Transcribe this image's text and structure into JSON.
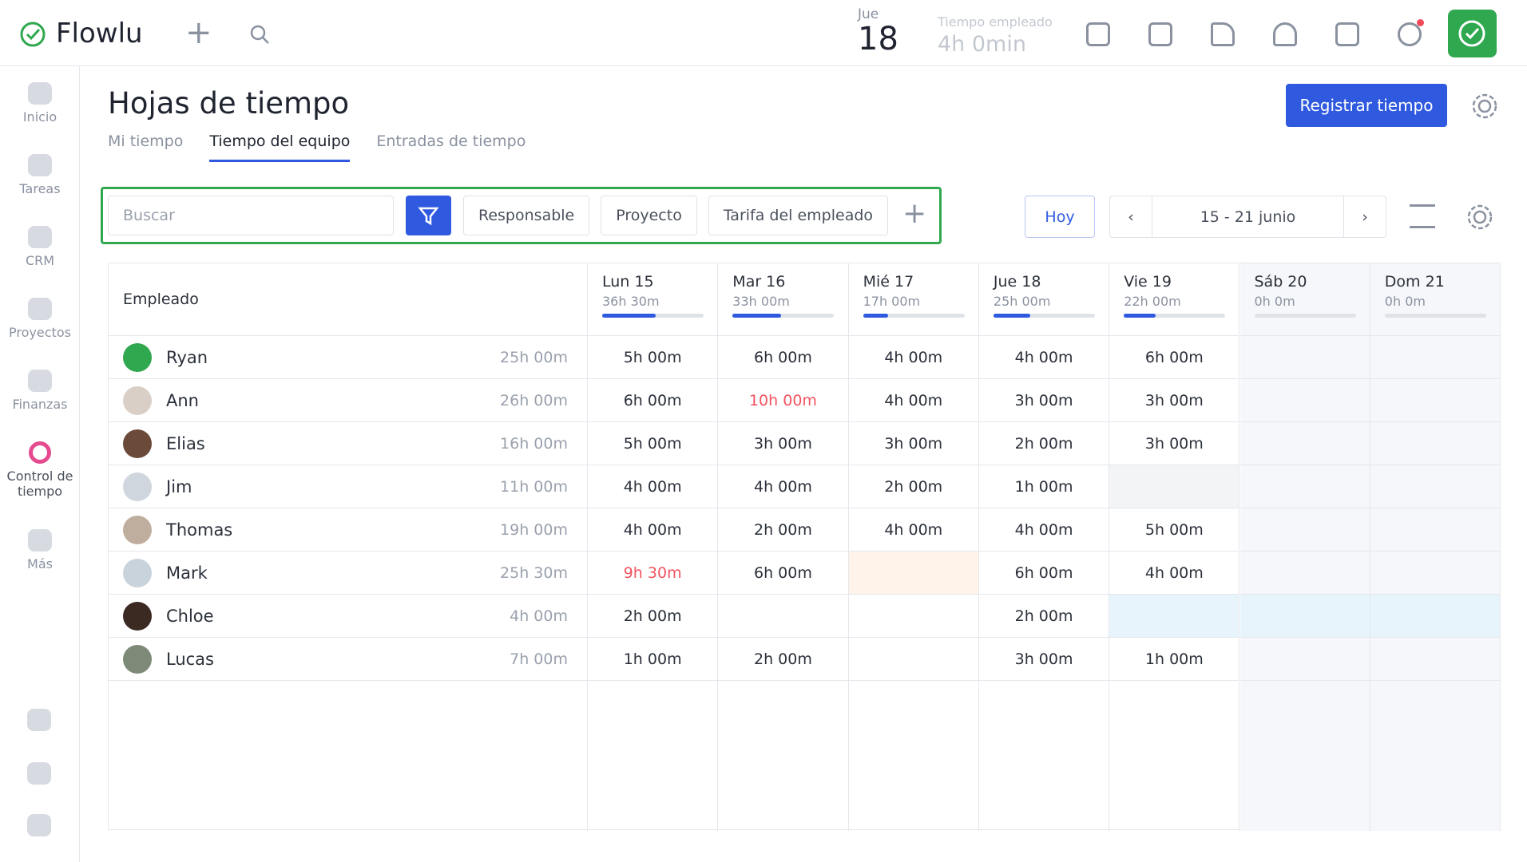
{
  "app": {
    "name": "Flowlu"
  },
  "header": {
    "day_name": "Jue",
    "day_number": "18",
    "time_label": "Tiempo empleado",
    "time_value": "4h 0min"
  },
  "sidebar": [
    "Inicio",
    "Tareas",
    "CRM",
    "Proyectos",
    "Finanzas",
    "Control de tiempo",
    "Más"
  ],
  "page": {
    "title": "Hojas de tiempo",
    "primary_button": "Registrar tiempo",
    "tabs": [
      "Mi tiempo",
      "Tiempo del equipo",
      "Entradas de tiempo"
    ],
    "active_tab": 1
  },
  "filters": {
    "search_placeholder": "Buscar",
    "chips": [
      "Responsable",
      "Proyecto",
      "Tarifa del empleado"
    ]
  },
  "date_nav": {
    "today": "Hoy",
    "range": "15 - 21 junio"
  },
  "table": {
    "employee_header": "Empleado",
    "days": [
      {
        "name": "Lun 15",
        "total": "36h 30m",
        "progress": 53
      },
      {
        "name": "Mar 16",
        "total": "33h 00m",
        "progress": 48
      },
      {
        "name": "Mié 17",
        "total": "17h 00m",
        "progress": 25
      },
      {
        "name": "Jue 18",
        "total": "25h 00m",
        "progress": 36
      },
      {
        "name": "Vie 19",
        "total": "22h 00m",
        "progress": 31
      },
      {
        "name": "Sáb 20",
        "total": "0h 0m",
        "progress": 0
      },
      {
        "name": "Dom 21",
        "total": "0h 0m",
        "progress": 0
      }
    ],
    "rows": [
      {
        "name": "Ryan",
        "total": "25h 00m",
        "cells": [
          "5h 00m",
          "6h 00m",
          "4h 00m",
          "4h 00m",
          "6h 00m",
          null,
          null
        ]
      },
      {
        "name": "Ann",
        "total": "26h 00m",
        "cells": [
          "6h 00m",
          "10h 00m",
          "4h 00m",
          "3h 00m",
          "3h 00m",
          null,
          null
        ]
      },
      {
        "name": "Elias",
        "total": "16h 00m",
        "cells": [
          "5h 00m",
          "3h 00m",
          "3h 00m",
          "2h 00m",
          "3h 00m",
          null,
          null
        ]
      },
      {
        "name": "Jim",
        "total": "11h 00m",
        "cells": [
          "4h 00m",
          "4h 00m",
          "2h 00m",
          "1h 00m",
          null,
          null,
          null
        ]
      },
      {
        "name": "Thomas",
        "total": "19h 00m",
        "cells": [
          "4h 00m",
          "2h 00m",
          "4h 00m",
          "4h 00m",
          "5h 00m",
          null,
          null
        ]
      },
      {
        "name": "Mark",
        "total": "25h 30m",
        "cells": [
          "9h 30m",
          "6h 00m",
          null,
          "6h 00m",
          "4h 00m",
          null,
          null
        ]
      },
      {
        "name": "Chloe",
        "total": "4h 00m",
        "cells": [
          "2h 00m",
          null,
          null,
          "2h 00m",
          null,
          null,
          null
        ]
      },
      {
        "name": "Lucas",
        "total": "7h 00m",
        "cells": [
          "1h 00m",
          "2h 00m",
          null,
          "3h 00m",
          "1h 00m",
          null,
          null
        ]
      }
    ]
  }
}
